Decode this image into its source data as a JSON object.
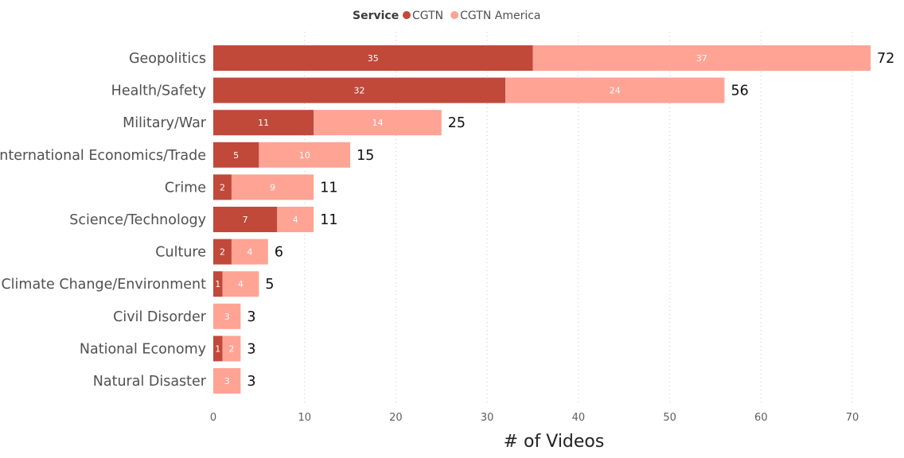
{
  "chart_data": {
    "type": "bar",
    "orientation": "horizontal",
    "stacked": true,
    "categories": [
      "Geopolitics",
      "Health/Safety",
      "Military/War",
      "International Economics/Trade",
      "Crime",
      "Science/Technology",
      "Culture",
      "Climate Change/Environment",
      "Civil Disorder",
      "National Economy",
      "Natural Disaster"
    ],
    "series": [
      {
        "name": "CGTN",
        "color": "#c0493a",
        "values": [
          35,
          32,
          11,
          5,
          2,
          7,
          2,
          1,
          0,
          1,
          0
        ]
      },
      {
        "name": "CGTN America",
        "color": "#ffa394",
        "values": [
          37,
          24,
          14,
          10,
          9,
          4,
          4,
          4,
          3,
          2,
          3
        ]
      }
    ],
    "totals": [
      72,
      56,
      25,
      15,
      11,
      11,
      6,
      5,
      3,
      3,
      3
    ],
    "xlabel": "# of Videos",
    "xlim": [
      0,
      72
    ],
    "xticks": [
      0,
      10,
      20,
      30,
      40,
      50,
      60,
      70
    ],
    "grid": "vertical dotted",
    "legend": {
      "title": "Service",
      "placement": "top-center"
    }
  }
}
